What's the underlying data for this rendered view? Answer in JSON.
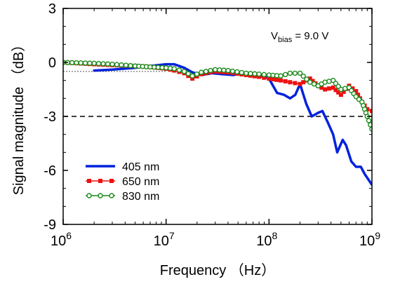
{
  "chart_data": {
    "type": "line",
    "xlabel": "Frequency （Hz）",
    "ylabel": "Signal magnitude （dB）",
    "x_scale": "log",
    "xlim": [
      1000000,
      1000000000
    ],
    "ylim": [
      -9,
      3
    ],
    "x_ticks": [
      {
        "value": 1000000,
        "base": "10",
        "exp": "6"
      },
      {
        "value": 10000000,
        "base": "10",
        "exp": "7"
      },
      {
        "value": 100000000,
        "base": "10",
        "exp": "8"
      },
      {
        "value": 1000000000,
        "base": "10",
        "exp": "9"
      }
    ],
    "y_ticks": [
      {
        "value": 3,
        "label": "3"
      },
      {
        "value": 0,
        "label": "0"
      },
      {
        "value": -3,
        "label": "-3"
      },
      {
        "value": -6,
        "label": "-6"
      },
      {
        "value": -9,
        "label": "-9"
      }
    ],
    "annotation": {
      "main": "V",
      "sub": "bias",
      "rest": " = 9.0 V"
    },
    "reference_lines": [
      {
        "y": -3,
        "x_from": 1000000,
        "x_to": 1000000000,
        "style": "dashed"
      },
      {
        "y": -0.5,
        "x_from": 1000000,
        "x_to": 10000000,
        "style": "dotted"
      }
    ],
    "legend_position": "bottom-left",
    "series": [
      {
        "name": "405 nm",
        "color": "#0022dd",
        "marker": "none",
        "points": [
          [
            2000000,
            -0.45
          ],
          [
            3000000,
            -0.4
          ],
          [
            5000000,
            -0.3
          ],
          [
            7000000,
            -0.2
          ],
          [
            10000000,
            -0.1
          ],
          [
            12000000,
            -0.1
          ],
          [
            15000000,
            -0.3
          ],
          [
            18000000,
            -0.55
          ],
          [
            22000000,
            -0.7
          ],
          [
            28000000,
            -0.6
          ],
          [
            35000000,
            -0.65
          ],
          [
            45000000,
            -0.7
          ],
          [
            55000000,
            -0.6
          ],
          [
            70000000,
            -0.7
          ],
          [
            90000000,
            -0.8
          ],
          [
            100000000,
            -0.9
          ],
          [
            120000000,
            -1.7
          ],
          [
            140000000,
            -1.8
          ],
          [
            160000000,
            -2.0
          ],
          [
            180000000,
            -1.8
          ],
          [
            200000000,
            -1.2
          ],
          [
            230000000,
            -2.3
          ],
          [
            260000000,
            -3.0
          ],
          [
            300000000,
            -2.8
          ],
          [
            330000000,
            -2.7
          ],
          [
            370000000,
            -3.3
          ],
          [
            420000000,
            -4.0
          ],
          [
            460000000,
            -5.0
          ],
          [
            520000000,
            -4.3
          ],
          [
            560000000,
            -4.6
          ],
          [
            630000000,
            -5.5
          ],
          [
            700000000,
            -5.8
          ],
          [
            780000000,
            -5.8
          ],
          [
            850000000,
            -6.2
          ],
          [
            1000000000,
            -6.8
          ]
        ]
      },
      {
        "name": "650 nm",
        "color": "#ee1111",
        "marker": "square",
        "points": [
          [
            1000000,
            0.0
          ],
          [
            2000000,
            -0.1
          ],
          [
            3000000,
            -0.15
          ],
          [
            5000000,
            -0.2
          ],
          [
            7000000,
            -0.25
          ],
          [
            10000000,
            -0.35
          ],
          [
            12000000,
            -0.45
          ],
          [
            15000000,
            -0.6
          ],
          [
            18000000,
            -0.9
          ],
          [
            22000000,
            -0.65
          ],
          [
            30000000,
            -0.5
          ],
          [
            40000000,
            -0.55
          ],
          [
            60000000,
            -0.7
          ],
          [
            80000000,
            -0.8
          ],
          [
            100000000,
            -0.9
          ],
          [
            130000000,
            -1.0
          ],
          [
            160000000,
            -1.1
          ],
          [
            200000000,
            -1.2
          ],
          [
            250000000,
            -0.9
          ],
          [
            300000000,
            -1.3
          ],
          [
            350000000,
            -1.5
          ],
          [
            420000000,
            -1.4
          ],
          [
            500000000,
            -1.8
          ],
          [
            600000000,
            -1.3
          ],
          [
            700000000,
            -1.6
          ],
          [
            800000000,
            -2.2
          ],
          [
            900000000,
            -2.6
          ],
          [
            1000000000,
            -2.7
          ]
        ]
      },
      {
        "name": "830 nm",
        "color": "#1a8a1a",
        "marker": "circle-open",
        "points": [
          [
            1000000,
            0.0
          ],
          [
            2000000,
            -0.05
          ],
          [
            3000000,
            -0.1
          ],
          [
            5000000,
            -0.2
          ],
          [
            7000000,
            -0.25
          ],
          [
            10000000,
            -0.3
          ],
          [
            12000000,
            -0.35
          ],
          [
            15000000,
            -0.5
          ],
          [
            18000000,
            -0.75
          ],
          [
            22000000,
            -0.55
          ],
          [
            30000000,
            -0.4
          ],
          [
            40000000,
            -0.45
          ],
          [
            60000000,
            -0.6
          ],
          [
            80000000,
            -0.65
          ],
          [
            100000000,
            -0.7
          ],
          [
            130000000,
            -0.75
          ],
          [
            160000000,
            -0.6
          ],
          [
            200000000,
            -0.6
          ],
          [
            250000000,
            -1.1
          ],
          [
            300000000,
            -1.3
          ],
          [
            350000000,
            -1.1
          ],
          [
            420000000,
            -1.0
          ],
          [
            500000000,
            -1.5
          ],
          [
            600000000,
            -1.4
          ],
          [
            700000000,
            -1.9
          ],
          [
            800000000,
            -2.2
          ],
          [
            900000000,
            -3.0
          ],
          [
            1000000000,
            -3.7
          ]
        ]
      }
    ]
  }
}
